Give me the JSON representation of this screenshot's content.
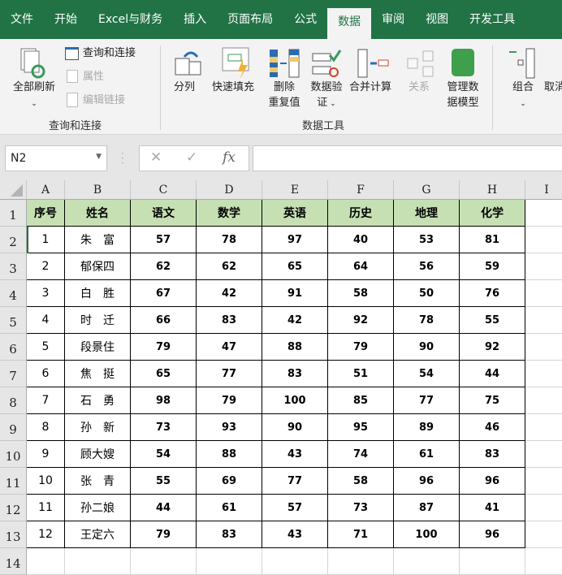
{
  "tabs": [
    "文件",
    "开始",
    "Excel与财务",
    "插入",
    "页面布局",
    "公式",
    "数据",
    "审阅",
    "视图",
    "开发工具"
  ],
  "active_tab": "数据",
  "ribbon": {
    "refresh_all": "全部刷新",
    "query_connect": "查询和连接",
    "properties": "属性",
    "edit_links": "编辑链接",
    "group1": "查询和连接",
    "split": "分列",
    "flash_fill": "快速填充",
    "remove_dup_1": "删除",
    "remove_dup_2": "重复值",
    "validation_1": "数据验",
    "validation_2": "证",
    "consolidate": "合并计算",
    "relations": "关系",
    "manage_model_1": "管理数",
    "manage_model_2": "据模型",
    "group2": "数据工具",
    "group_btn": "组合",
    "ungroup_btn": "取消"
  },
  "formula_bar": {
    "name_box": "N2",
    "formula": ""
  },
  "columns": [
    "A",
    "B",
    "C",
    "D",
    "E",
    "F",
    "G",
    "H",
    "I"
  ],
  "rows": [
    "1",
    "2",
    "3",
    "4",
    "5",
    "6",
    "7",
    "8",
    "9",
    "10",
    "11",
    "12",
    "13",
    "14"
  ],
  "table": {
    "headers": [
      "序号",
      "姓名",
      "语文",
      "数学",
      "英语",
      "历史",
      "地理",
      "化学"
    ],
    "data": [
      [
        "1",
        "朱　富",
        "57",
        "78",
        "97",
        "40",
        "53",
        "81"
      ],
      [
        "2",
        "郁保四",
        "62",
        "62",
        "65",
        "64",
        "56",
        "59"
      ],
      [
        "3",
        "白　胜",
        "67",
        "42",
        "91",
        "58",
        "50",
        "76"
      ],
      [
        "4",
        "时　迁",
        "66",
        "83",
        "42",
        "92",
        "78",
        "55"
      ],
      [
        "5",
        "段景住",
        "79",
        "47",
        "88",
        "79",
        "90",
        "92"
      ],
      [
        "6",
        "焦　挺",
        "65",
        "77",
        "83",
        "51",
        "54",
        "44"
      ],
      [
        "7",
        "石　勇",
        "98",
        "79",
        "100",
        "85",
        "77",
        "75"
      ],
      [
        "8",
        "孙　新",
        "73",
        "93",
        "90",
        "95",
        "89",
        "46"
      ],
      [
        "9",
        "顾大嫂",
        "54",
        "88",
        "43",
        "74",
        "61",
        "83"
      ],
      [
        "10",
        "张　青",
        "55",
        "69",
        "77",
        "58",
        "96",
        "96"
      ],
      [
        "11",
        "孙二娘",
        "44",
        "61",
        "57",
        "73",
        "87",
        "41"
      ],
      [
        "12",
        "王定六",
        "79",
        "83",
        "43",
        "71",
        "100",
        "96"
      ]
    ]
  },
  "colors": {
    "accent": "#217346",
    "header_fill": "#c6e0b4"
  }
}
